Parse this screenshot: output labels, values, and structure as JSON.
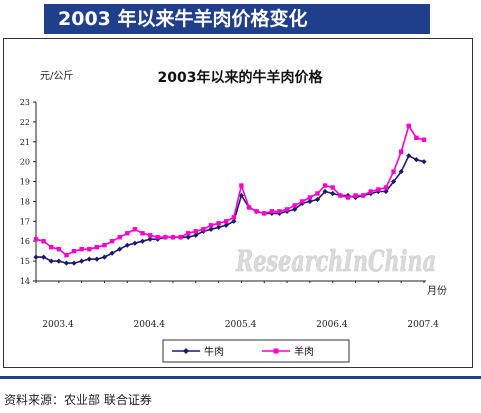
{
  "header": {
    "title": "2003 年以来牛羊肉价格变化"
  },
  "footer": {
    "source": "资料来源：农业部 联合证券"
  },
  "watermark": "ResearchInChina",
  "chart_data": {
    "type": "line",
    "title": "2003年以来的牛羊肉价格",
    "ylabel": "元/公斤",
    "xlabel": "月份",
    "ylim": [
      14,
      23
    ],
    "yticks": [
      "14",
      "15",
      "16",
      "17",
      "18",
      "19",
      "20",
      "21",
      "22",
      "23"
    ],
    "xtick_labels": [
      {
        "label": "2003.4",
        "index": 0
      },
      {
        "label": "2004.4",
        "index": 12
      },
      {
        "label": "2005.4",
        "index": 24
      },
      {
        "label": "2006.4",
        "index": 36
      },
      {
        "label": "2007.4",
        "index": 48
      }
    ],
    "n_points": 52,
    "legend_position": "bottom",
    "grid": false,
    "series": [
      {
        "name": "牛肉",
        "color": "#1a1a6e",
        "marker": "diamond",
        "values": [
          15.2,
          15.2,
          15.0,
          15.0,
          14.9,
          14.9,
          15.0,
          15.1,
          15.1,
          15.2,
          15.4,
          15.6,
          15.8,
          15.9,
          16.0,
          16.1,
          16.1,
          16.2,
          16.2,
          16.2,
          16.2,
          16.3,
          16.5,
          16.6,
          16.7,
          16.8,
          17.0,
          18.3,
          17.7,
          17.5,
          17.4,
          17.4,
          17.4,
          17.5,
          17.6,
          17.9,
          18.0,
          18.1,
          18.5,
          18.4,
          18.3,
          18.3,
          18.2,
          18.3,
          18.4,
          18.5,
          18.5,
          19.0,
          19.5,
          20.3,
          20.1,
          20.0
        ]
      },
      {
        "name": "羊肉",
        "color": "#ff00cc",
        "marker": "square",
        "values": [
          16.1,
          16.0,
          15.7,
          15.6,
          15.3,
          15.5,
          15.6,
          15.6,
          15.7,
          15.8,
          16.0,
          16.2,
          16.4,
          16.6,
          16.4,
          16.3,
          16.2,
          16.2,
          16.2,
          16.2,
          16.4,
          16.5,
          16.6,
          16.8,
          16.9,
          17.0,
          17.2,
          18.8,
          17.7,
          17.5,
          17.4,
          17.5,
          17.5,
          17.6,
          17.8,
          18.0,
          18.2,
          18.4,
          18.8,
          18.7,
          18.3,
          18.2,
          18.3,
          18.3,
          18.5,
          18.6,
          18.7,
          19.5,
          20.5,
          21.8,
          21.2,
          21.1
        ]
      }
    ]
  }
}
